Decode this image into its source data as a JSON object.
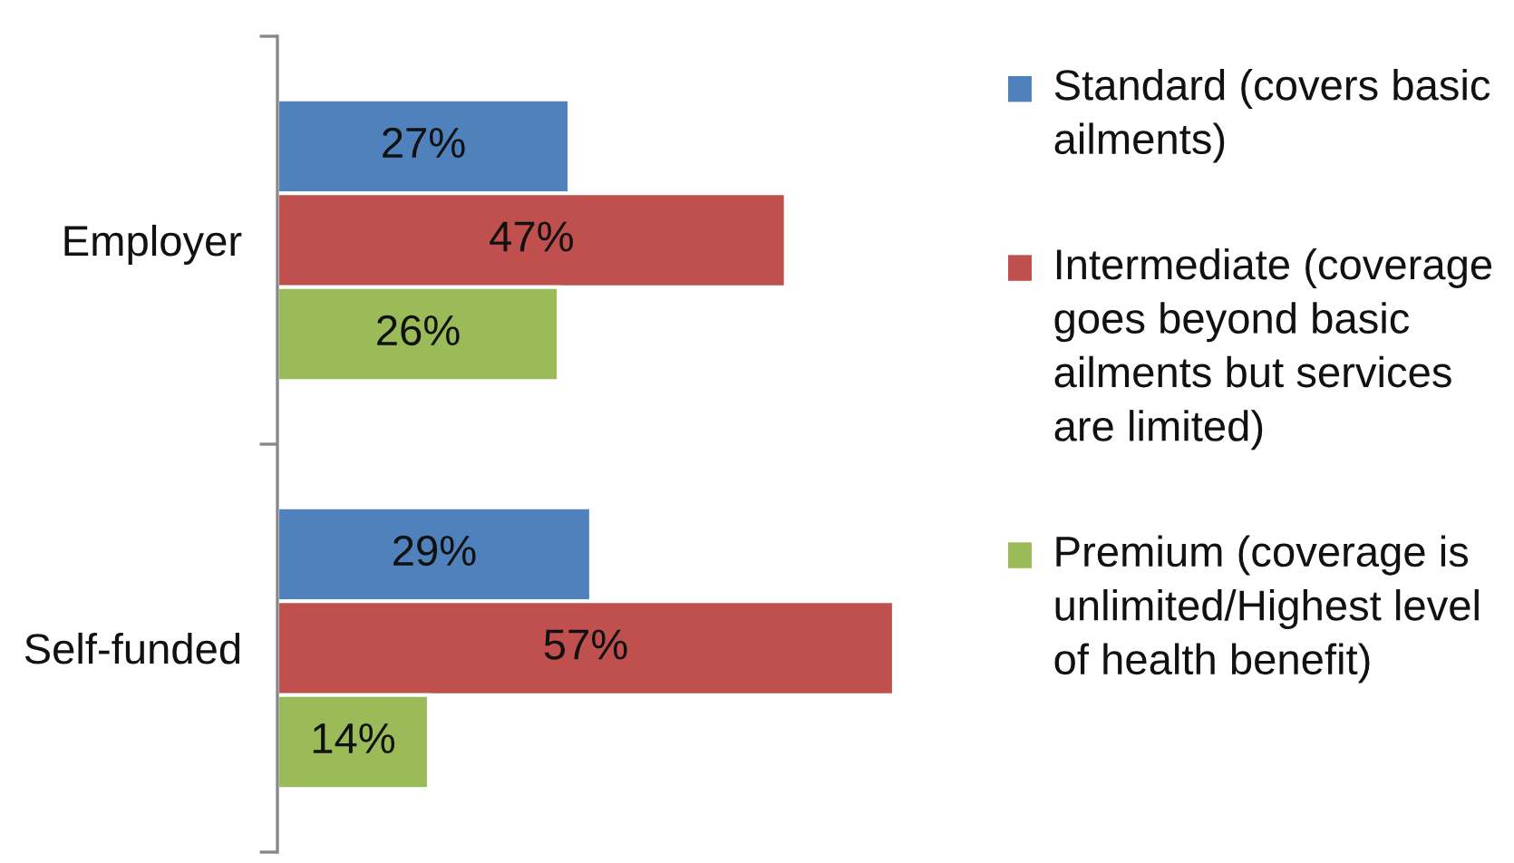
{
  "chart_data": {
    "type": "bar",
    "orientation": "horizontal",
    "categories": [
      "Employer",
      "Self-funded"
    ],
    "series": [
      {
        "name": "Standard (covers basic\nailments)",
        "color": "#4f81bd",
        "values": [
          27,
          29
        ],
        "value_labels": [
          "27%",
          "29%"
        ]
      },
      {
        "name": "Intermediate (coverage\ngoes beyond basic\nailments but services\nare limited)",
        "color": "#c0504d",
        "values": [
          47,
          57
        ],
        "value_labels": [
          "47%",
          "57%"
        ]
      },
      {
        "name": "Premium (coverage is\nunlimited/Highest level\nof health benefit)",
        "color": "#9bbb59",
        "values": [
          26,
          14
        ],
        "value_labels": [
          "26%",
          "14%"
        ]
      }
    ],
    "legend": "right",
    "tick_labels": "y"
  }
}
